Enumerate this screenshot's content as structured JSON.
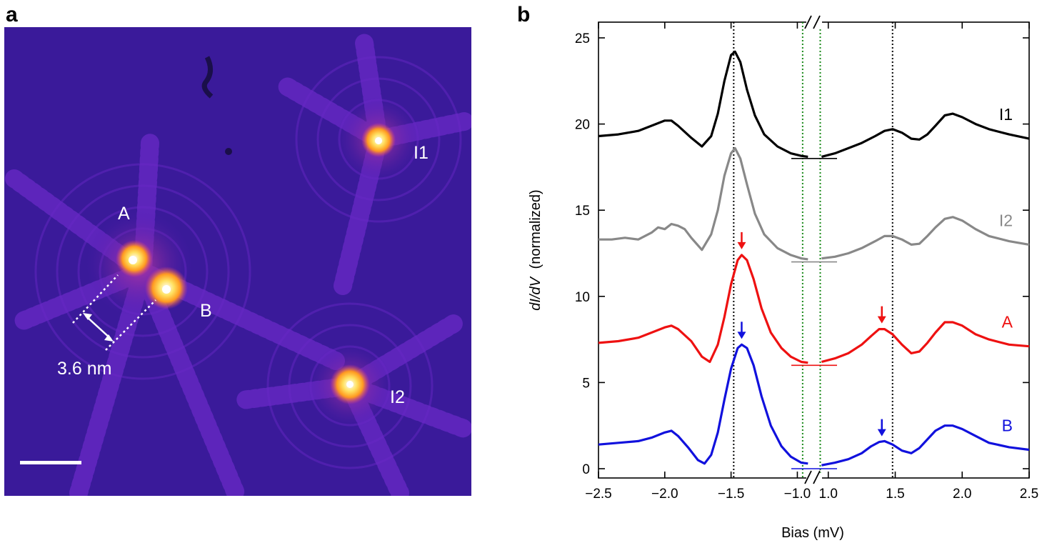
{
  "panel_a": {
    "letter": "a",
    "atom_labels": [
      "A",
      "B",
      "I1",
      "I2"
    ],
    "distance_label": "3.6 nm",
    "colors": {
      "background": "#3a1a9a",
      "ring": "#6f2bd0",
      "hot": "#ffd040",
      "core": "#ffffff"
    }
  },
  "panel_b": {
    "letter": "b",
    "ylabel_italic": "dI/dV",
    "ylabel_rest": "(normalized)",
    "break_mark": "//"
  },
  "chart_data": {
    "type": "line",
    "title": "",
    "xlabel": "Bias (mV)",
    "ylabel": "dI/dV (normalized)",
    "ylim": [
      0,
      25
    ],
    "yticks": [
      0,
      5,
      10,
      15,
      20,
      25
    ],
    "x_segments": [
      {
        "range": [
          -2.5,
          -0.9
        ],
        "ticks": [
          -2.5,
          -2.0,
          -1.5,
          -1.0
        ],
        "tick_labels": [
          "−2.5",
          "−2.0",
          "−1.5",
          "−1.0"
        ]
      },
      {
        "range": [
          0.9,
          2.5
        ],
        "ticks": [
          1.0,
          1.5,
          2.0,
          2.5
        ],
        "tick_labels": [
          "1.0",
          "1.5",
          "2.0",
          "2.5"
        ]
      }
    ],
    "reference_lines": [
      {
        "x": -1.48,
        "color": "#000000",
        "style": "dotted"
      },
      {
        "x": 1.48,
        "color": "#000000",
        "style": "dotted"
      },
      {
        "x": -0.96,
        "color": "#1a8a1a",
        "style": "dotted"
      },
      {
        "x": 0.94,
        "color": "#1a8a1a",
        "style": "dotted"
      }
    ],
    "series": [
      {
        "name": "I1",
        "color": "#000000",
        "baseline": 18.0,
        "neg": [
          [
            -2.5,
            19.3
          ],
          [
            -2.35,
            19.4
          ],
          [
            -2.2,
            19.6
          ],
          [
            -2.1,
            19.9
          ],
          [
            -2.0,
            20.2
          ],
          [
            -1.95,
            20.2
          ],
          [
            -1.9,
            19.9
          ],
          [
            -1.8,
            19.2
          ],
          [
            -1.72,
            18.7
          ],
          [
            -1.65,
            19.3
          ],
          [
            -1.6,
            20.6
          ],
          [
            -1.55,
            22.5
          ],
          [
            -1.5,
            24.0
          ],
          [
            -1.47,
            24.2
          ],
          [
            -1.43,
            23.6
          ],
          [
            -1.38,
            22.0
          ],
          [
            -1.32,
            20.5
          ],
          [
            -1.25,
            19.4
          ],
          [
            -1.15,
            18.7
          ],
          [
            -1.05,
            18.3
          ],
          [
            -0.97,
            18.15
          ],
          [
            -0.92,
            18.1
          ]
        ],
        "pos": [
          [
            0.95,
            18.1
          ],
          [
            1.05,
            18.3
          ],
          [
            1.15,
            18.6
          ],
          [
            1.25,
            18.9
          ],
          [
            1.35,
            19.3
          ],
          [
            1.42,
            19.6
          ],
          [
            1.48,
            19.7
          ],
          [
            1.55,
            19.5
          ],
          [
            1.62,
            19.15
          ],
          [
            1.68,
            19.1
          ],
          [
            1.74,
            19.4
          ],
          [
            1.8,
            19.9
          ],
          [
            1.87,
            20.5
          ],
          [
            1.93,
            20.6
          ],
          [
            2.0,
            20.4
          ],
          [
            2.1,
            20.0
          ],
          [
            2.2,
            19.7
          ],
          [
            2.35,
            19.4
          ],
          [
            2.5,
            19.15
          ]
        ],
        "arrows": []
      },
      {
        "name": "I2",
        "color": "#888888",
        "baseline": 12.0,
        "neg": [
          [
            -2.5,
            13.3
          ],
          [
            -2.4,
            13.3
          ],
          [
            -2.3,
            13.4
          ],
          [
            -2.2,
            13.3
          ],
          [
            -2.1,
            13.7
          ],
          [
            -2.05,
            14.0
          ],
          [
            -2.0,
            13.9
          ],
          [
            -1.95,
            14.2
          ],
          [
            -1.9,
            14.1
          ],
          [
            -1.85,
            13.9
          ],
          [
            -1.8,
            13.4
          ],
          [
            -1.72,
            12.7
          ],
          [
            -1.65,
            13.6
          ],
          [
            -1.6,
            15.0
          ],
          [
            -1.55,
            17.0
          ],
          [
            -1.5,
            18.3
          ],
          [
            -1.47,
            18.6
          ],
          [
            -1.43,
            18.0
          ],
          [
            -1.38,
            16.5
          ],
          [
            -1.32,
            14.8
          ],
          [
            -1.25,
            13.6
          ],
          [
            -1.15,
            12.8
          ],
          [
            -1.05,
            12.4
          ],
          [
            -0.97,
            12.2
          ],
          [
            -0.92,
            12.15
          ]
        ],
        "pos": [
          [
            0.95,
            12.2
          ],
          [
            1.05,
            12.3
          ],
          [
            1.15,
            12.5
          ],
          [
            1.25,
            12.8
          ],
          [
            1.35,
            13.2
          ],
          [
            1.42,
            13.5
          ],
          [
            1.48,
            13.5
          ],
          [
            1.55,
            13.3
          ],
          [
            1.62,
            13.0
          ],
          [
            1.68,
            13.05
          ],
          [
            1.74,
            13.5
          ],
          [
            1.8,
            14.0
          ],
          [
            1.87,
            14.5
          ],
          [
            1.93,
            14.6
          ],
          [
            2.0,
            14.4
          ],
          [
            2.1,
            13.9
          ],
          [
            2.2,
            13.5
          ],
          [
            2.35,
            13.2
          ],
          [
            2.5,
            13.0
          ]
        ],
        "arrows": []
      },
      {
        "name": "A",
        "color": "#ee1111",
        "baseline": 6.0,
        "neg": [
          [
            -2.5,
            7.3
          ],
          [
            -2.35,
            7.4
          ],
          [
            -2.2,
            7.6
          ],
          [
            -2.1,
            7.9
          ],
          [
            -2.0,
            8.2
          ],
          [
            -1.95,
            8.3
          ],
          [
            -1.9,
            8.1
          ],
          [
            -1.8,
            7.4
          ],
          [
            -1.72,
            6.5
          ],
          [
            -1.66,
            6.2
          ],
          [
            -1.6,
            7.2
          ],
          [
            -1.55,
            8.8
          ],
          [
            -1.5,
            10.7
          ],
          [
            -1.45,
            12.1
          ],
          [
            -1.42,
            12.4
          ],
          [
            -1.38,
            12.1
          ],
          [
            -1.33,
            11.0
          ],
          [
            -1.27,
            9.3
          ],
          [
            -1.2,
            7.9
          ],
          [
            -1.12,
            7.0
          ],
          [
            -1.05,
            6.5
          ],
          [
            -0.97,
            6.2
          ],
          [
            -0.92,
            6.15
          ]
        ],
        "pos": [
          [
            0.95,
            6.2
          ],
          [
            1.05,
            6.4
          ],
          [
            1.15,
            6.7
          ],
          [
            1.25,
            7.2
          ],
          [
            1.32,
            7.7
          ],
          [
            1.38,
            8.1
          ],
          [
            1.42,
            8.1
          ],
          [
            1.48,
            7.8
          ],
          [
            1.55,
            7.2
          ],
          [
            1.62,
            6.7
          ],
          [
            1.68,
            6.8
          ],
          [
            1.74,
            7.3
          ],
          [
            1.8,
            7.9
          ],
          [
            1.87,
            8.5
          ],
          [
            1.93,
            8.5
          ],
          [
            2.0,
            8.3
          ],
          [
            2.1,
            7.8
          ],
          [
            2.2,
            7.5
          ],
          [
            2.35,
            7.2
          ],
          [
            2.5,
            7.1
          ]
        ],
        "arrows": [
          -1.42,
          1.4
        ]
      },
      {
        "name": "B",
        "color": "#1111dd",
        "baseline": 0.0,
        "neg": [
          [
            -2.5,
            1.4
          ],
          [
            -2.35,
            1.5
          ],
          [
            -2.2,
            1.6
          ],
          [
            -2.1,
            1.8
          ],
          [
            -2.0,
            2.1
          ],
          [
            -1.95,
            2.2
          ],
          [
            -1.9,
            1.9
          ],
          [
            -1.82,
            1.2
          ],
          [
            -1.75,
            0.5
          ],
          [
            -1.7,
            0.3
          ],
          [
            -1.65,
            0.8
          ],
          [
            -1.6,
            2.1
          ],
          [
            -1.55,
            4.0
          ],
          [
            -1.5,
            5.8
          ],
          [
            -1.45,
            7.0
          ],
          [
            -1.42,
            7.2
          ],
          [
            -1.38,
            7.0
          ],
          [
            -1.33,
            6.0
          ],
          [
            -1.27,
            4.2
          ],
          [
            -1.2,
            2.5
          ],
          [
            -1.12,
            1.3
          ],
          [
            -1.05,
            0.7
          ],
          [
            -0.97,
            0.35
          ],
          [
            -0.92,
            0.3
          ]
        ],
        "pos": [
          [
            0.95,
            0.2
          ],
          [
            1.05,
            0.35
          ],
          [
            1.15,
            0.55
          ],
          [
            1.25,
            0.9
          ],
          [
            1.32,
            1.3
          ],
          [
            1.38,
            1.55
          ],
          [
            1.42,
            1.6
          ],
          [
            1.48,
            1.4
          ],
          [
            1.55,
            1.05
          ],
          [
            1.62,
            0.9
          ],
          [
            1.68,
            1.2
          ],
          [
            1.74,
            1.7
          ],
          [
            1.8,
            2.2
          ],
          [
            1.87,
            2.5
          ],
          [
            1.93,
            2.5
          ],
          [
            2.0,
            2.3
          ],
          [
            2.1,
            1.9
          ],
          [
            2.2,
            1.5
          ],
          [
            2.35,
            1.25
          ],
          [
            2.5,
            1.1
          ]
        ],
        "arrows": [
          -1.42,
          1.4
        ]
      }
    ]
  }
}
